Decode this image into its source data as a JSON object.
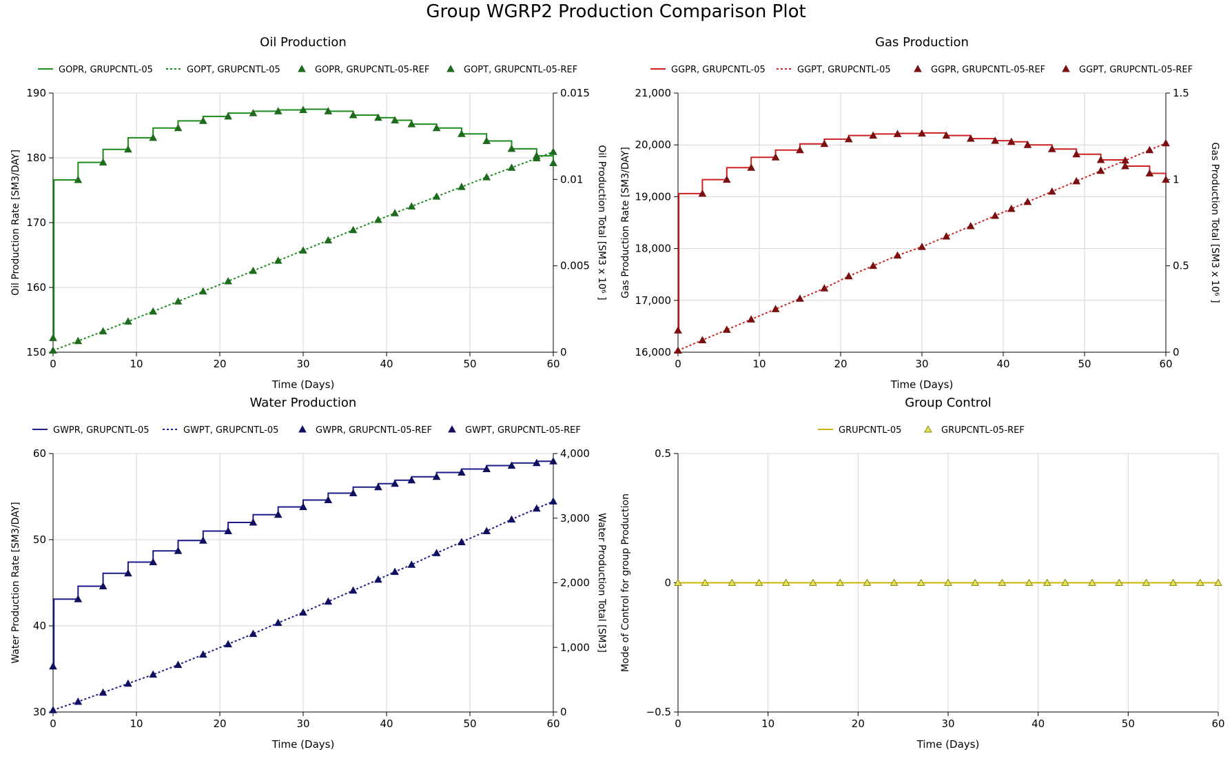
{
  "page_title": "Group WGRP2 Production Comparison Plot",
  "chart_data": [
    {
      "id": "oil",
      "type": "line",
      "title": "Oil Production",
      "xlabel": "Time (Days)",
      "ylabel": "Oil Production Rate [SM3/DAY]",
      "ylabel2": "Oil Production Total [SM3 x 10⁶ ]",
      "xlim": [
        0,
        60
      ],
      "ylim": [
        150,
        190
      ],
      "ylim2": [
        0,
        0.015
      ],
      "xticks": [
        0,
        10,
        20,
        30,
        40,
        50,
        60
      ],
      "xtick_labels": [
        "0",
        "10",
        "20",
        "30",
        "40",
        "50",
        "60"
      ],
      "yticks": [
        150,
        160,
        170,
        180,
        190
      ],
      "ytick_labels": [
        "150",
        "160",
        "170",
        "180",
        "190"
      ],
      "yticks2": [
        0,
        0.005,
        0.01,
        0.015
      ],
      "ytick2_labels": [
        "0",
        "0.005",
        "0.01",
        "0.015"
      ],
      "grid": true,
      "legend_position": "top",
      "color": "#1a8a1a",
      "marker_color": "#1e6b1e",
      "series": [
        {
          "name": "GOPR, GRUPCNTL-05",
          "axis": "left",
          "style": "solid-step",
          "x": [
            0,
            0.1,
            3,
            6,
            9,
            12,
            15,
            18,
            21,
            24,
            27,
            30,
            33,
            36,
            39,
            41,
            43,
            46,
            49,
            52,
            55,
            58,
            60
          ],
          "y": [
            152.2,
            176.6,
            179.3,
            181.3,
            183.1,
            184.6,
            185.7,
            186.4,
            186.9,
            187.2,
            187.4,
            187.5,
            187.2,
            186.6,
            186.2,
            185.8,
            185.2,
            184.6,
            183.7,
            182.6,
            181.4,
            180.3,
            179.2
          ]
        },
        {
          "name": "GOPT, GRUPCNTL-05",
          "axis": "right",
          "style": "dotted",
          "x": [
            0,
            3,
            6,
            9,
            12,
            15,
            18,
            21,
            24,
            27,
            30,
            33,
            36,
            39,
            41,
            43,
            46,
            49,
            52,
            55,
            58,
            60
          ],
          "y": [
            0.0001,
            0.00065,
            0.00121,
            0.00178,
            0.00236,
            0.00294,
            0.00352,
            0.00411,
            0.00471,
            0.0053,
            0.00589,
            0.00648,
            0.00707,
            0.00766,
            0.00805,
            0.00844,
            0.00901,
            0.00957,
            0.01013,
            0.01068,
            0.01123,
            0.0116
          ]
        },
        {
          "name": "GOPR, GRUPCNTL-05-REF",
          "axis": "left",
          "style": "markers",
          "x": [
            0,
            3,
            6,
            9,
            12,
            15,
            18,
            21,
            24,
            27,
            30,
            33,
            36,
            39,
            41,
            43,
            46,
            49,
            52,
            55,
            58,
            60
          ],
          "y": [
            152.2,
            176.6,
            179.3,
            181.3,
            183.1,
            184.6,
            185.7,
            186.4,
            186.9,
            187.2,
            187.4,
            187.2,
            186.6,
            186.2,
            185.8,
            185.2,
            184.6,
            183.7,
            182.6,
            181.4,
            180.3,
            179.2
          ]
        },
        {
          "name": "GOPT, GRUPCNTL-05-REF",
          "axis": "right",
          "style": "markers",
          "x": [
            0,
            3,
            6,
            9,
            12,
            15,
            18,
            21,
            24,
            27,
            30,
            33,
            36,
            39,
            41,
            43,
            46,
            49,
            52,
            55,
            58,
            60
          ],
          "y": [
            0.0001,
            0.00065,
            0.00121,
            0.00178,
            0.00236,
            0.00294,
            0.00352,
            0.00411,
            0.00471,
            0.0053,
            0.00589,
            0.00648,
            0.00707,
            0.00766,
            0.00805,
            0.00844,
            0.00901,
            0.00957,
            0.01013,
            0.01068,
            0.01123,
            0.0116
          ]
        }
      ]
    },
    {
      "id": "gas",
      "type": "line",
      "title": "Gas Production",
      "xlabel": "Time (Days)",
      "ylabel": "Gas Production Rate [SM3/DAY]",
      "ylabel2": "Gas Production Total [SM3 x 10⁶ ]",
      "xlim": [
        0,
        60
      ],
      "ylim": [
        16000,
        21000
      ],
      "ylim2": [
        0,
        1.5
      ],
      "xticks": [
        0,
        10,
        20,
        30,
        40,
        50,
        60
      ],
      "xtick_labels": [
        "0",
        "10",
        "20",
        "30",
        "40",
        "50",
        "60"
      ],
      "yticks": [
        16000,
        17000,
        18000,
        19000,
        20000,
        21000
      ],
      "ytick_labels": [
        "16,000",
        "17,000",
        "18,000",
        "19,000",
        "20,000",
        "21,000"
      ],
      "yticks2": [
        0,
        0.5,
        1,
        1.5
      ],
      "ytick2_labels": [
        "0",
        "0.5",
        "1",
        "1.5"
      ],
      "grid": true,
      "legend_position": "top",
      "color": "#cc2020",
      "marker_color": "#7a1010",
      "series": [
        {
          "name": "GGPR, GRUPCNTL-05",
          "axis": "left",
          "style": "solid-step",
          "x": [
            0,
            0.1,
            3,
            6,
            9,
            12,
            15,
            18,
            21,
            24,
            27,
            30,
            33,
            36,
            39,
            41,
            43,
            46,
            49,
            52,
            55,
            58,
            60
          ],
          "y": [
            16420,
            19060,
            19330,
            19560,
            19760,
            19900,
            20020,
            20110,
            20180,
            20210,
            20220,
            20230,
            20180,
            20120,
            20080,
            20060,
            20000,
            19920,
            19820,
            19710,
            19590,
            19450,
            19330
          ]
        },
        {
          "name": "GGPT, GRUPCNTL-05",
          "axis": "right",
          "style": "dotted",
          "x": [
            0,
            3,
            6,
            9,
            12,
            15,
            18,
            21,
            24,
            27,
            30,
            33,
            36,
            39,
            41,
            43,
            46,
            49,
            52,
            55,
            58,
            60
          ],
          "y": [
            0.01,
            0.07,
            0.13,
            0.19,
            0.25,
            0.31,
            0.37,
            0.44,
            0.5,
            0.56,
            0.61,
            0.67,
            0.73,
            0.79,
            0.83,
            0.87,
            0.93,
            0.99,
            1.05,
            1.11,
            1.17,
            1.21
          ]
        },
        {
          "name": "GGPR, GRUPCNTL-05-REF",
          "axis": "left",
          "style": "markers",
          "x": [
            0,
            3,
            6,
            9,
            12,
            15,
            18,
            21,
            24,
            27,
            30,
            33,
            36,
            39,
            41,
            43,
            46,
            49,
            52,
            55,
            58,
            60
          ],
          "y": [
            16420,
            19060,
            19330,
            19560,
            19760,
            19900,
            20020,
            20110,
            20180,
            20210,
            20220,
            20180,
            20120,
            20080,
            20060,
            20000,
            19920,
            19820,
            19710,
            19590,
            19450,
            19330
          ]
        },
        {
          "name": "GGPT, GRUPCNTL-05-REF",
          "axis": "right",
          "style": "markers",
          "x": [
            0,
            3,
            6,
            9,
            12,
            15,
            18,
            21,
            24,
            27,
            30,
            33,
            36,
            39,
            41,
            43,
            46,
            49,
            52,
            55,
            58,
            60
          ],
          "y": [
            0.01,
            0.07,
            0.13,
            0.19,
            0.25,
            0.31,
            0.37,
            0.44,
            0.5,
            0.56,
            0.61,
            0.67,
            0.73,
            0.79,
            0.83,
            0.87,
            0.93,
            0.99,
            1.05,
            1.11,
            1.17,
            1.21
          ]
        }
      ]
    },
    {
      "id": "water",
      "type": "line",
      "title": "Water Production",
      "xlabel": "Time (Days)",
      "ylabel": "Water Production Rate [SM3/DAY]",
      "ylabel2": "Water Production Total [SM3]",
      "xlim": [
        0,
        60
      ],
      "ylim": [
        30,
        60
      ],
      "ylim2": [
        0,
        4000
      ],
      "xticks": [
        0,
        10,
        20,
        30,
        40,
        50,
        60
      ],
      "xtick_labels": [
        "0",
        "10",
        "20",
        "30",
        "40",
        "50",
        "60"
      ],
      "yticks": [
        30,
        40,
        50,
        60
      ],
      "ytick_labels": [
        "30",
        "40",
        "50",
        "60"
      ],
      "yticks2": [
        0,
        1000,
        2000,
        3000,
        4000
      ],
      "ytick2_labels": [
        "0",
        "1,000",
        "2,000",
        "3,000",
        "4,000"
      ],
      "grid": true,
      "legend_position": "top",
      "color": "#1a1a8a",
      "marker_color": "#101060",
      "series": [
        {
          "name": "GWPR, GRUPCNTL-05",
          "axis": "left",
          "style": "solid-step",
          "x": [
            0,
            0.1,
            3,
            6,
            9,
            12,
            15,
            18,
            21,
            24,
            27,
            30,
            33,
            36,
            39,
            41,
            43,
            46,
            49,
            52,
            55,
            58,
            60
          ],
          "y": [
            35.3,
            43.1,
            44.6,
            46.1,
            47.4,
            48.7,
            49.9,
            51.0,
            52.0,
            52.9,
            53.8,
            54.6,
            55.4,
            56.1,
            56.5,
            56.9,
            57.3,
            57.8,
            58.2,
            58.6,
            58.9,
            59.1,
            59.2
          ]
        },
        {
          "name": "GWPT, GRUPCNTL-05",
          "axis": "right",
          "style": "dotted",
          "x": [
            0,
            3,
            6,
            9,
            12,
            15,
            18,
            21,
            24,
            27,
            30,
            33,
            36,
            39,
            41,
            43,
            46,
            49,
            52,
            55,
            58,
            60
          ],
          "y": [
            30,
            160,
            300,
            440,
            580,
            730,
            890,
            1050,
            1210,
            1380,
            1540,
            1710,
            1880,
            2050,
            2170,
            2280,
            2460,
            2630,
            2800,
            2980,
            3150,
            3260
          ]
        },
        {
          "name": "GWPR, GRUPCNTL-05-REF",
          "axis": "left",
          "style": "markers",
          "x": [
            0,
            3,
            6,
            9,
            12,
            15,
            18,
            21,
            24,
            27,
            30,
            33,
            36,
            39,
            41,
            43,
            46,
            49,
            52,
            55,
            58,
            60
          ],
          "y": [
            35.3,
            43.1,
            44.6,
            46.1,
            47.4,
            48.7,
            49.9,
            51.0,
            52.0,
            52.9,
            53.8,
            54.6,
            55.4,
            56.1,
            56.5,
            56.9,
            57.3,
            57.8,
            58.2,
            58.6,
            58.9,
            59.1
          ]
        },
        {
          "name": "GWPT, GRUPCNTL-05-REF",
          "axis": "right",
          "style": "markers",
          "x": [
            0,
            3,
            6,
            9,
            12,
            15,
            18,
            21,
            24,
            27,
            30,
            33,
            36,
            39,
            41,
            43,
            46,
            49,
            52,
            55,
            58,
            60
          ],
          "y": [
            30,
            160,
            300,
            440,
            580,
            730,
            890,
            1050,
            1210,
            1380,
            1540,
            1710,
            1880,
            2050,
            2170,
            2280,
            2460,
            2630,
            2800,
            2980,
            3150,
            3260
          ]
        }
      ]
    },
    {
      "id": "control",
      "type": "line",
      "title": "Group Control",
      "xlabel": "Time (Days)",
      "ylabel": "Mode of Control for group Production",
      "xlim": [
        0,
        60
      ],
      "ylim": [
        -0.5,
        0.5
      ],
      "xticks": [
        0,
        10,
        20,
        30,
        40,
        50,
        60
      ],
      "xtick_labels": [
        "0",
        "10",
        "20",
        "30",
        "40",
        "50",
        "60"
      ],
      "yticks": [
        -0.5,
        0,
        0.5
      ],
      "ytick_labels": [
        "−0.5",
        "0",
        "0.5"
      ],
      "grid": true,
      "legend_position": "top",
      "color": "#c8b400",
      "marker_color": "#8a8a00",
      "series": [
        {
          "name": "GRUPCNTL-05",
          "axis": "left",
          "style": "solid",
          "x": [
            0,
            60
          ],
          "y": [
            0,
            0
          ]
        },
        {
          "name": "GRUPCNTL-05-REF",
          "axis": "left",
          "style": "markers-hollow",
          "x": [
            0,
            3,
            6,
            9,
            12,
            15,
            18,
            21,
            24,
            27,
            30,
            33,
            36,
            39,
            41,
            43,
            46,
            49,
            52,
            55,
            58,
            60
          ],
          "y": [
            0,
            0,
            0,
            0,
            0,
            0,
            0,
            0,
            0,
            0,
            0,
            0,
            0,
            0,
            0,
            0,
            0,
            0,
            0,
            0,
            0,
            0
          ]
        }
      ]
    }
  ]
}
